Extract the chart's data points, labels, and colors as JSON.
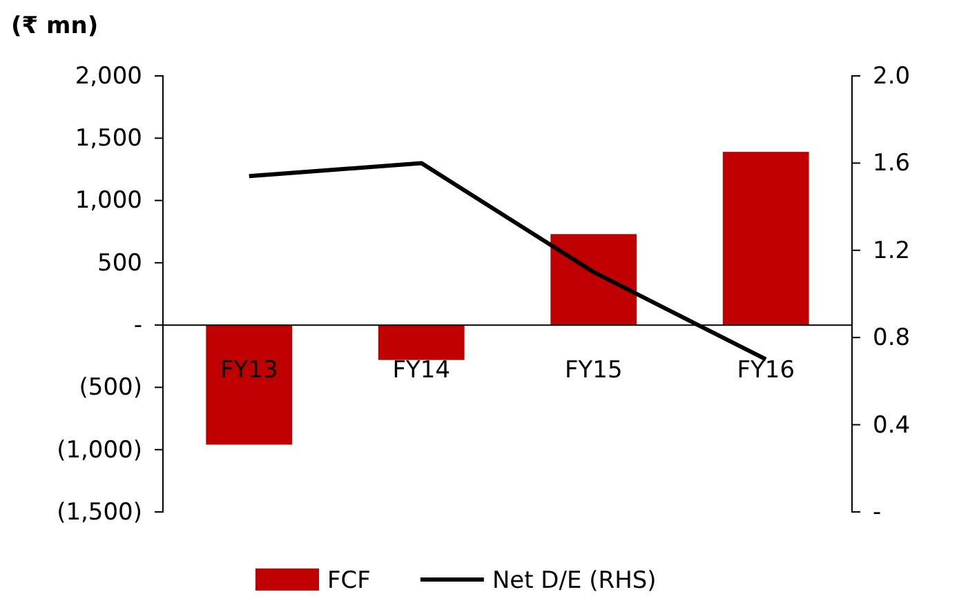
{
  "chart_data": {
    "type": "bar",
    "ylabel": "(₹ mn)",
    "categories": [
      "FY13",
      "FY14",
      "FY15",
      "FY16"
    ],
    "series": [
      {
        "name": "FCF",
        "color": "#c00000",
        "values": [
          -960,
          -280,
          730,
          1390
        ]
      },
      {
        "name": "Net D/E (RHS)",
        "type": "line",
        "axis": "y2",
        "color": "#000000",
        "values": [
          1.54,
          1.6,
          1.1,
          0.7
        ]
      }
    ],
    "ylim": [
      -1500,
      2000
    ],
    "yticks": [
      {
        "value": 2000,
        "label": "2,000"
      },
      {
        "value": 1500,
        "label": "1,500"
      },
      {
        "value": 1000,
        "label": "1,000"
      },
      500,
      {
        "value": 0,
        "label": "-"
      },
      {
        "value": -500,
        "label": "(500)"
      },
      {
        "value": -1000,
        "label": "(1,000)"
      },
      {
        "value": -1500,
        "label": "(1,500)"
      }
    ],
    "y2lim": [
      0,
      2
    ],
    "y2ticks": [
      {
        "value": 2,
        "label": "2.0"
      },
      1.6,
      1.2,
      0.8,
      0.4,
      {
        "value": 0,
        "label": "-"
      }
    ],
    "grid": false,
    "legend": "bottom",
    "marker": "none",
    "line_style": "solid"
  }
}
